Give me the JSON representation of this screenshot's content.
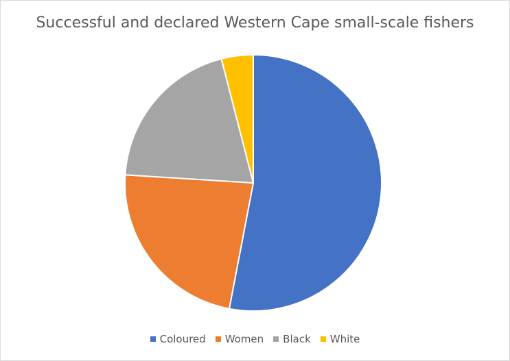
{
  "chart_data": {
    "type": "pie",
    "title": "Successful and declared Western Cape small-scale fishers",
    "legend_position": "bottom",
    "categories": [
      "Coloured",
      "Women",
      "Black",
      "White"
    ],
    "values": [
      53,
      23,
      20,
      4
    ],
    "colors": [
      "#4472c4",
      "#ed7d31",
      "#a5a5a5",
      "#ffc000"
    ]
  }
}
